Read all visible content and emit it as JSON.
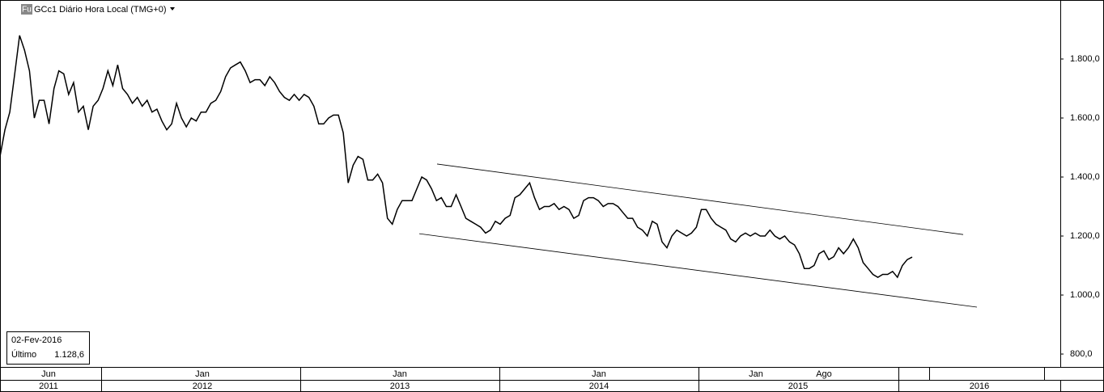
{
  "chart_data": {
    "type": "line",
    "title": "GCc1 Diário Hora Local (TMG+0)",
    "badge": "Fu",
    "color": "#000000",
    "values": [
      1470,
      1560,
      1620,
      1750,
      1880,
      1830,
      1760,
      1600,
      1660,
      1660,
      1580,
      1700,
      1760,
      1750,
      1680,
      1720,
      1620,
      1640,
      1560,
      1640,
      1660,
      1700,
      1760,
      1710,
      1780,
      1700,
      1680,
      1650,
      1670,
      1640,
      1660,
      1620,
      1630,
      1590,
      1560,
      1580,
      1650,
      1600,
      1570,
      1600,
      1590,
      1620,
      1620,
      1650,
      1660,
      1690,
      1740,
      1770,
      1780,
      1790,
      1760,
      1720,
      1730,
      1730,
      1710,
      1740,
      1720,
      1690,
      1670,
      1660,
      1680,
      1660,
      1680,
      1670,
      1640,
      1580,
      1580,
      1600,
      1610,
      1610,
      1550,
      1380,
      1440,
      1470,
      1460,
      1390,
      1390,
      1410,
      1380,
      1260,
      1240,
      1290,
      1320,
      1320,
      1320,
      1360,
      1400,
      1390,
      1360,
      1320,
      1330,
      1300,
      1300,
      1340,
      1300,
      1260,
      1250,
      1240,
      1230,
      1210,
      1220,
      1250,
      1240,
      1260,
      1270,
      1330,
      1340,
      1360,
      1380,
      1330,
      1290,
      1300,
      1300,
      1310,
      1290,
      1300,
      1290,
      1260,
      1270,
      1320,
      1330,
      1330,
      1320,
      1300,
      1310,
      1310,
      1300,
      1280,
      1260,
      1260,
      1230,
      1220,
      1200,
      1250,
      1240,
      1180,
      1160,
      1200,
      1220,
      1210,
      1200,
      1210,
      1230,
      1290,
      1290,
      1260,
      1240,
      1230,
      1220,
      1190,
      1180,
      1200,
      1210,
      1200,
      1210,
      1200,
      1200,
      1220,
      1200,
      1190,
      1200,
      1180,
      1170,
      1140,
      1090,
      1090,
      1100,
      1140,
      1150,
      1120,
      1130,
      1160,
      1140,
      1160,
      1190,
      1160,
      1110,
      1090,
      1070,
      1060,
      1070,
      1070,
      1080,
      1060,
      1100,
      1120,
      1128.6
    ],
    "ylim": [
      759,
      2000
    ],
    "yticks": [
      {
        "value": 800,
        "label": "800,0"
      },
      {
        "value": 1000,
        "label": "1.000,0"
      },
      {
        "value": 1200,
        "label": "1.200,0"
      },
      {
        "value": 1400,
        "label": "1.400,0"
      },
      {
        "value": 1600,
        "label": "1.600,0"
      },
      {
        "value": 1800,
        "label": "1.800,0"
      }
    ],
    "trend_lines": [
      {
        "values": [
          1444,
          1205
        ]
      },
      {
        "values": [
          1208,
          959
        ]
      }
    ],
    "x_axis": {
      "months": [
        "Jun",
        "Jan",
        "Jan",
        "Jan",
        "Jan",
        "Ago"
      ],
      "years": [
        "2011",
        "2012",
        "2013",
        "2014",
        "2015",
        "2016"
      ]
    },
    "info_box": {
      "date": "02-Fev-2016",
      "label": "Último",
      "value": {
        "value": 1128.6,
        "label": "1.128,6"
      }
    }
  }
}
